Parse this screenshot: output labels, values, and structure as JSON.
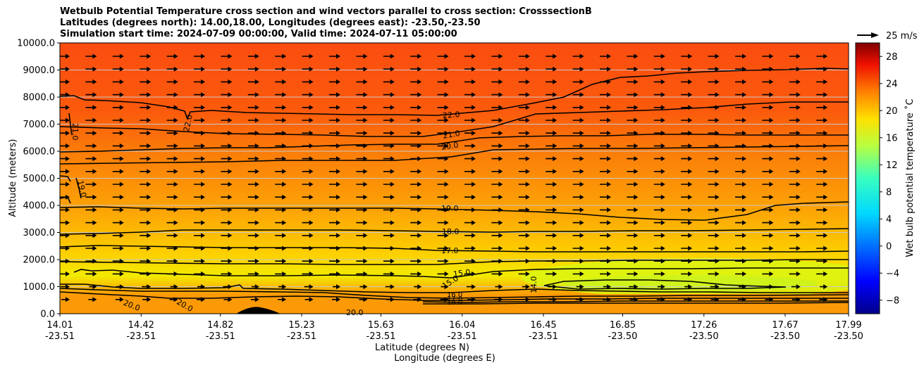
{
  "chart_data": {
    "type": "heatmap",
    "title_lines": [
      "Wetbulb Potential Temperature cross section and wind vectors parallel to cross section: CrosssectionB",
      "Latitudes (degrees north): 14.00,18.00, Longitudes (degrees east): -23.50,-23.50",
      "Simulation start time: 2024-07-09 00:00:00, Valid time: 2024-07-11 05:00:00"
    ],
    "ylabel": "Altitude (meters)",
    "xlabel": "Latitude (degrees N)",
    "xlabel2": "Longitude (degrees E)",
    "ylim": [
      0,
      10000
    ],
    "y_ticks": [
      "0.0",
      "1000.0",
      "2000.0",
      "3000.0",
      "4000.0",
      "5000.0",
      "6000.0",
      "7000.0",
      "8000.0",
      "9000.0",
      "10000.0"
    ],
    "x_ticks": [
      {
        "lat": "14.01",
        "lon": "-23.51"
      },
      {
        "lat": "14.42",
        "lon": "-23.51"
      },
      {
        "lat": "14.82",
        "lon": "-23.51"
      },
      {
        "lat": "15.23",
        "lon": "-23.51"
      },
      {
        "lat": "15.63",
        "lon": "-23.51"
      },
      {
        "lat": "16.04",
        "lon": "-23.51"
      },
      {
        "lat": "16.45",
        "lon": "-23.51"
      },
      {
        "lat": "16.85",
        "lon": "-23.50"
      },
      {
        "lat": "17.26",
        "lon": "-23.50"
      },
      {
        "lat": "17.67",
        "lon": "-23.50"
      },
      {
        "lat": "17.99",
        "lon": "-23.50"
      }
    ],
    "colorbar": {
      "label": "Wet bulb potential temperature ˚C",
      "range": [
        -10,
        30
      ],
      "ticks": [
        "−8",
        "−4",
        "0",
        "4",
        "8",
        "12",
        "16",
        "20",
        "24",
        "28"
      ]
    },
    "wind_key": "25 m/s",
    "contours": [
      {
        "label": "22.0",
        "alt_m": 7200
      },
      {
        "label": "21.0",
        "alt_m": 6550
      },
      {
        "label": "20.0",
        "alt_m": 6100
      },
      {
        "label": "19.0",
        "alt_m": 3900
      },
      {
        "label": "18.0",
        "alt_m": 3050
      },
      {
        "label": "17.0",
        "alt_m": 2300
      },
      {
        "label": "15.0",
        "alt_m": 1500
      },
      {
        "label": "14.0",
        "alt_m": 1000
      },
      {
        "label": "16.0",
        "alt_m": 700
      },
      {
        "label": "17.0",
        "alt_m": 600
      },
      {
        "label": "18.0",
        "alt_m": 500
      },
      {
        "label": "20.0",
        "alt_m": 100
      }
    ],
    "extra_labels": [
      "21.0",
      "22.0",
      "19.0",
      "15.0",
      "20.0",
      "20.0",
      "20.0"
    ]
  }
}
